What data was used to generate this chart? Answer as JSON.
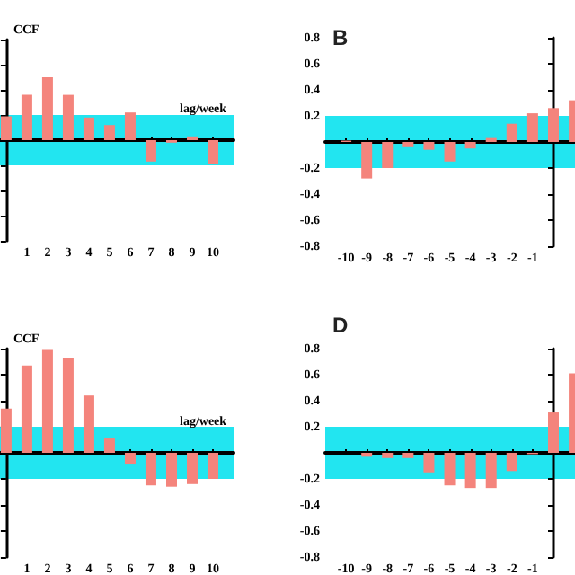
{
  "chart_data": [
    {
      "type": "bar",
      "ylabel": "CCF",
      "xlabel": "lag/week",
      "x": [
        0,
        1,
        2,
        3,
        4,
        5,
        6,
        7,
        8,
        9,
        10
      ],
      "values": [
        0.19,
        0.36,
        0.5,
        0.36,
        0.18,
        0.12,
        0.22,
        -0.17,
        -0.02,
        0.03,
        -0.19
      ],
      "color": "#f4847c",
      "xlim": [
        -0.3,
        11
      ],
      "xticks": [
        1,
        2,
        3,
        4,
        5,
        6,
        7,
        8,
        9,
        10
      ],
      "ylim": [
        -0.8,
        0.8
      ],
      "yticks": [
        -0.8,
        -0.6,
        -0.4,
        -0.2,
        0,
        0.2,
        0.4,
        0.6,
        0.8
      ],
      "tick_labels": "x",
      "bands": [
        {
          "axis": "y",
          "from": -0.2,
          "to": 0.2,
          "color": "#22e5f0"
        }
      ]
    },
    {
      "type": "bar",
      "title": "B",
      "x": [
        -10,
        -9,
        -8,
        -7,
        -6,
        -5,
        -4,
        -3,
        -2,
        -1,
        0,
        1
      ],
      "values": [
        0.01,
        -0.28,
        -0.2,
        -0.04,
        -0.06,
        -0.15,
        -0.05,
        0.03,
        0.14,
        0.22,
        0.26,
        0.32
      ],
      "color": "#f4847c",
      "xlim": [
        -11,
        1.04
      ],
      "xticks": [
        -10,
        -9,
        -8,
        -7,
        -6,
        -5,
        -4,
        -3,
        -2,
        -1
      ],
      "ylim": [
        -0.8,
        0.8
      ],
      "yticks": [
        -0.8,
        -0.6,
        -0.4,
        -0.2,
        0.2,
        0.4,
        0.6,
        0.8
      ],
      "bands": [
        {
          "axis": "y",
          "from": -0.2,
          "to": 0.2,
          "color": "#22e5f0"
        }
      ]
    },
    {
      "type": "bar",
      "ylabel": "CCF",
      "xlabel": "lag/week",
      "x": [
        0,
        1,
        2,
        3,
        4,
        5,
        6,
        7,
        8,
        9,
        10
      ],
      "values": [
        0.34,
        0.67,
        0.79,
        0.73,
        0.44,
        0.11,
        -0.09,
        -0.25,
        -0.26,
        -0.24,
        -0.2
      ],
      "color": "#f4847c",
      "xlim": [
        -0.3,
        11
      ],
      "xticks": [
        1,
        2,
        3,
        4,
        5,
        6,
        7,
        8,
        9,
        10
      ],
      "ylim": [
        -0.8,
        0.8
      ],
      "yticks": [
        -0.8,
        -0.6,
        -0.4,
        -0.2,
        0,
        0.2,
        0.4,
        0.6,
        0.8
      ],
      "tick_labels": "x",
      "bands": [
        {
          "axis": "y",
          "from": -0.2,
          "to": 0.2,
          "color": "#22e5f0"
        }
      ]
    },
    {
      "type": "bar",
      "title": "D",
      "x": [
        -10,
        -9,
        -8,
        -7,
        -6,
        -5,
        -4,
        -3,
        -2,
        -1,
        0,
        1
      ],
      "values": [
        0,
        -0.03,
        -0.04,
        -0.04,
        -0.15,
        -0.25,
        -0.27,
        -0.27,
        -0.14,
        -0.01,
        0.31,
        0.61
      ],
      "color": "#f4847c",
      "xlim": [
        -11,
        1.04
      ],
      "xticks": [
        -10,
        -9,
        -8,
        -7,
        -6,
        -5,
        -4,
        -3,
        -2,
        -1
      ],
      "ylim": [
        -0.8,
        0.8
      ],
      "yticks": [
        -0.8,
        -0.6,
        -0.4,
        -0.2,
        0.2,
        0.4,
        0.6,
        0.8
      ],
      "bands": [
        {
          "axis": "y",
          "from": -0.2,
          "to": 0.2,
          "color": "#22e5f0"
        }
      ]
    }
  ]
}
